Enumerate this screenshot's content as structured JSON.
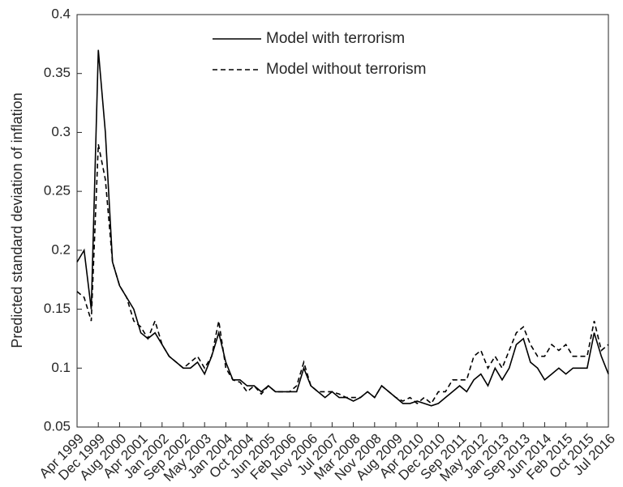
{
  "chart_data": {
    "type": "line",
    "ylabel": "Predicted standard deviation of inflation",
    "categories": [
      "Apr 1999",
      null,
      null,
      "Dec 1999",
      null,
      null,
      "Aug 2000",
      null,
      null,
      "Apr 2001",
      null,
      null,
      "Jan 2002",
      null,
      null,
      "Sep 2002",
      null,
      null,
      "May 2003",
      null,
      null,
      "Jan 2004",
      null,
      null,
      "Oct 2004",
      null,
      null,
      "Jun 2005",
      null,
      null,
      "Feb 2006",
      null,
      null,
      "Nov 2006",
      null,
      null,
      "Jul 2007",
      null,
      null,
      "Mar 2008",
      null,
      null,
      "Nov 2008",
      null,
      null,
      "Aug 2009",
      null,
      null,
      "Apr 2010",
      null,
      null,
      "Dec 2010",
      null,
      null,
      "Sep 2011",
      null,
      null,
      "May 2012",
      null,
      null,
      "Jan 2013",
      null,
      null,
      "Sep 2013",
      null,
      null,
      "Jun 2014",
      null,
      null,
      "Feb 2015",
      null,
      null,
      "Oct 2015",
      null,
      null,
      "Jul 2016"
    ],
    "series": [
      {
        "name": "Model with terrorism",
        "color": "#000000",
        "dash": "solid",
        "values": [
          0.19,
          0.2,
          0.15,
          0.37,
          0.3,
          0.19,
          0.17,
          0.16,
          0.15,
          0.13,
          0.125,
          0.13,
          0.12,
          0.11,
          0.105,
          0.1,
          0.1,
          0.105,
          0.095,
          0.11,
          0.13,
          0.105,
          0.09,
          0.09,
          0.085,
          0.085,
          0.08,
          0.085,
          0.08,
          0.08,
          0.08,
          0.08,
          0.1,
          0.085,
          0.08,
          0.075,
          0.08,
          0.075,
          0.075,
          0.072,
          0.075,
          0.08,
          0.075,
          0.085,
          0.08,
          0.075,
          0.07,
          0.07,
          0.072,
          0.07,
          0.068,
          0.07,
          0.075,
          0.08,
          0.085,
          0.08,
          0.09,
          0.095,
          0.085,
          0.1,
          0.09,
          0.1,
          0.12,
          0.125,
          0.105,
          0.1,
          0.09,
          0.095,
          0.1,
          0.095,
          0.1,
          0.1,
          0.1,
          0.13,
          0.11,
          0.095
        ]
      },
      {
        "name": "Model without terrorism",
        "color": "#000000",
        "dash": "dashed",
        "values": [
          0.165,
          0.16,
          0.14,
          0.29,
          0.26,
          0.19,
          0.17,
          0.16,
          0.14,
          0.135,
          0.125,
          0.14,
          0.12,
          0.11,
          0.105,
          0.1,
          0.105,
          0.11,
          0.1,
          0.11,
          0.14,
          0.1,
          0.09,
          0.088,
          0.08,
          0.085,
          0.078,
          0.085,
          0.08,
          0.08,
          0.08,
          0.085,
          0.105,
          0.085,
          0.08,
          0.08,
          0.08,
          0.078,
          0.075,
          0.075,
          0.075,
          0.08,
          0.075,
          0.085,
          0.08,
          0.075,
          0.072,
          0.075,
          0.07,
          0.075,
          0.07,
          0.08,
          0.08,
          0.09,
          0.09,
          0.09,
          0.11,
          0.115,
          0.1,
          0.11,
          0.1,
          0.115,
          0.13,
          0.135,
          0.12,
          0.11,
          0.11,
          0.12,
          0.115,
          0.12,
          0.11,
          0.11,
          0.11,
          0.14,
          0.115,
          0.12
        ]
      }
    ],
    "ylim": [
      0.05,
      0.4
    ],
    "yticks": [
      0.05,
      0.1,
      0.15,
      0.2,
      0.25,
      0.3,
      0.35,
      0.4
    ],
    "grid": false,
    "legend": "top"
  }
}
